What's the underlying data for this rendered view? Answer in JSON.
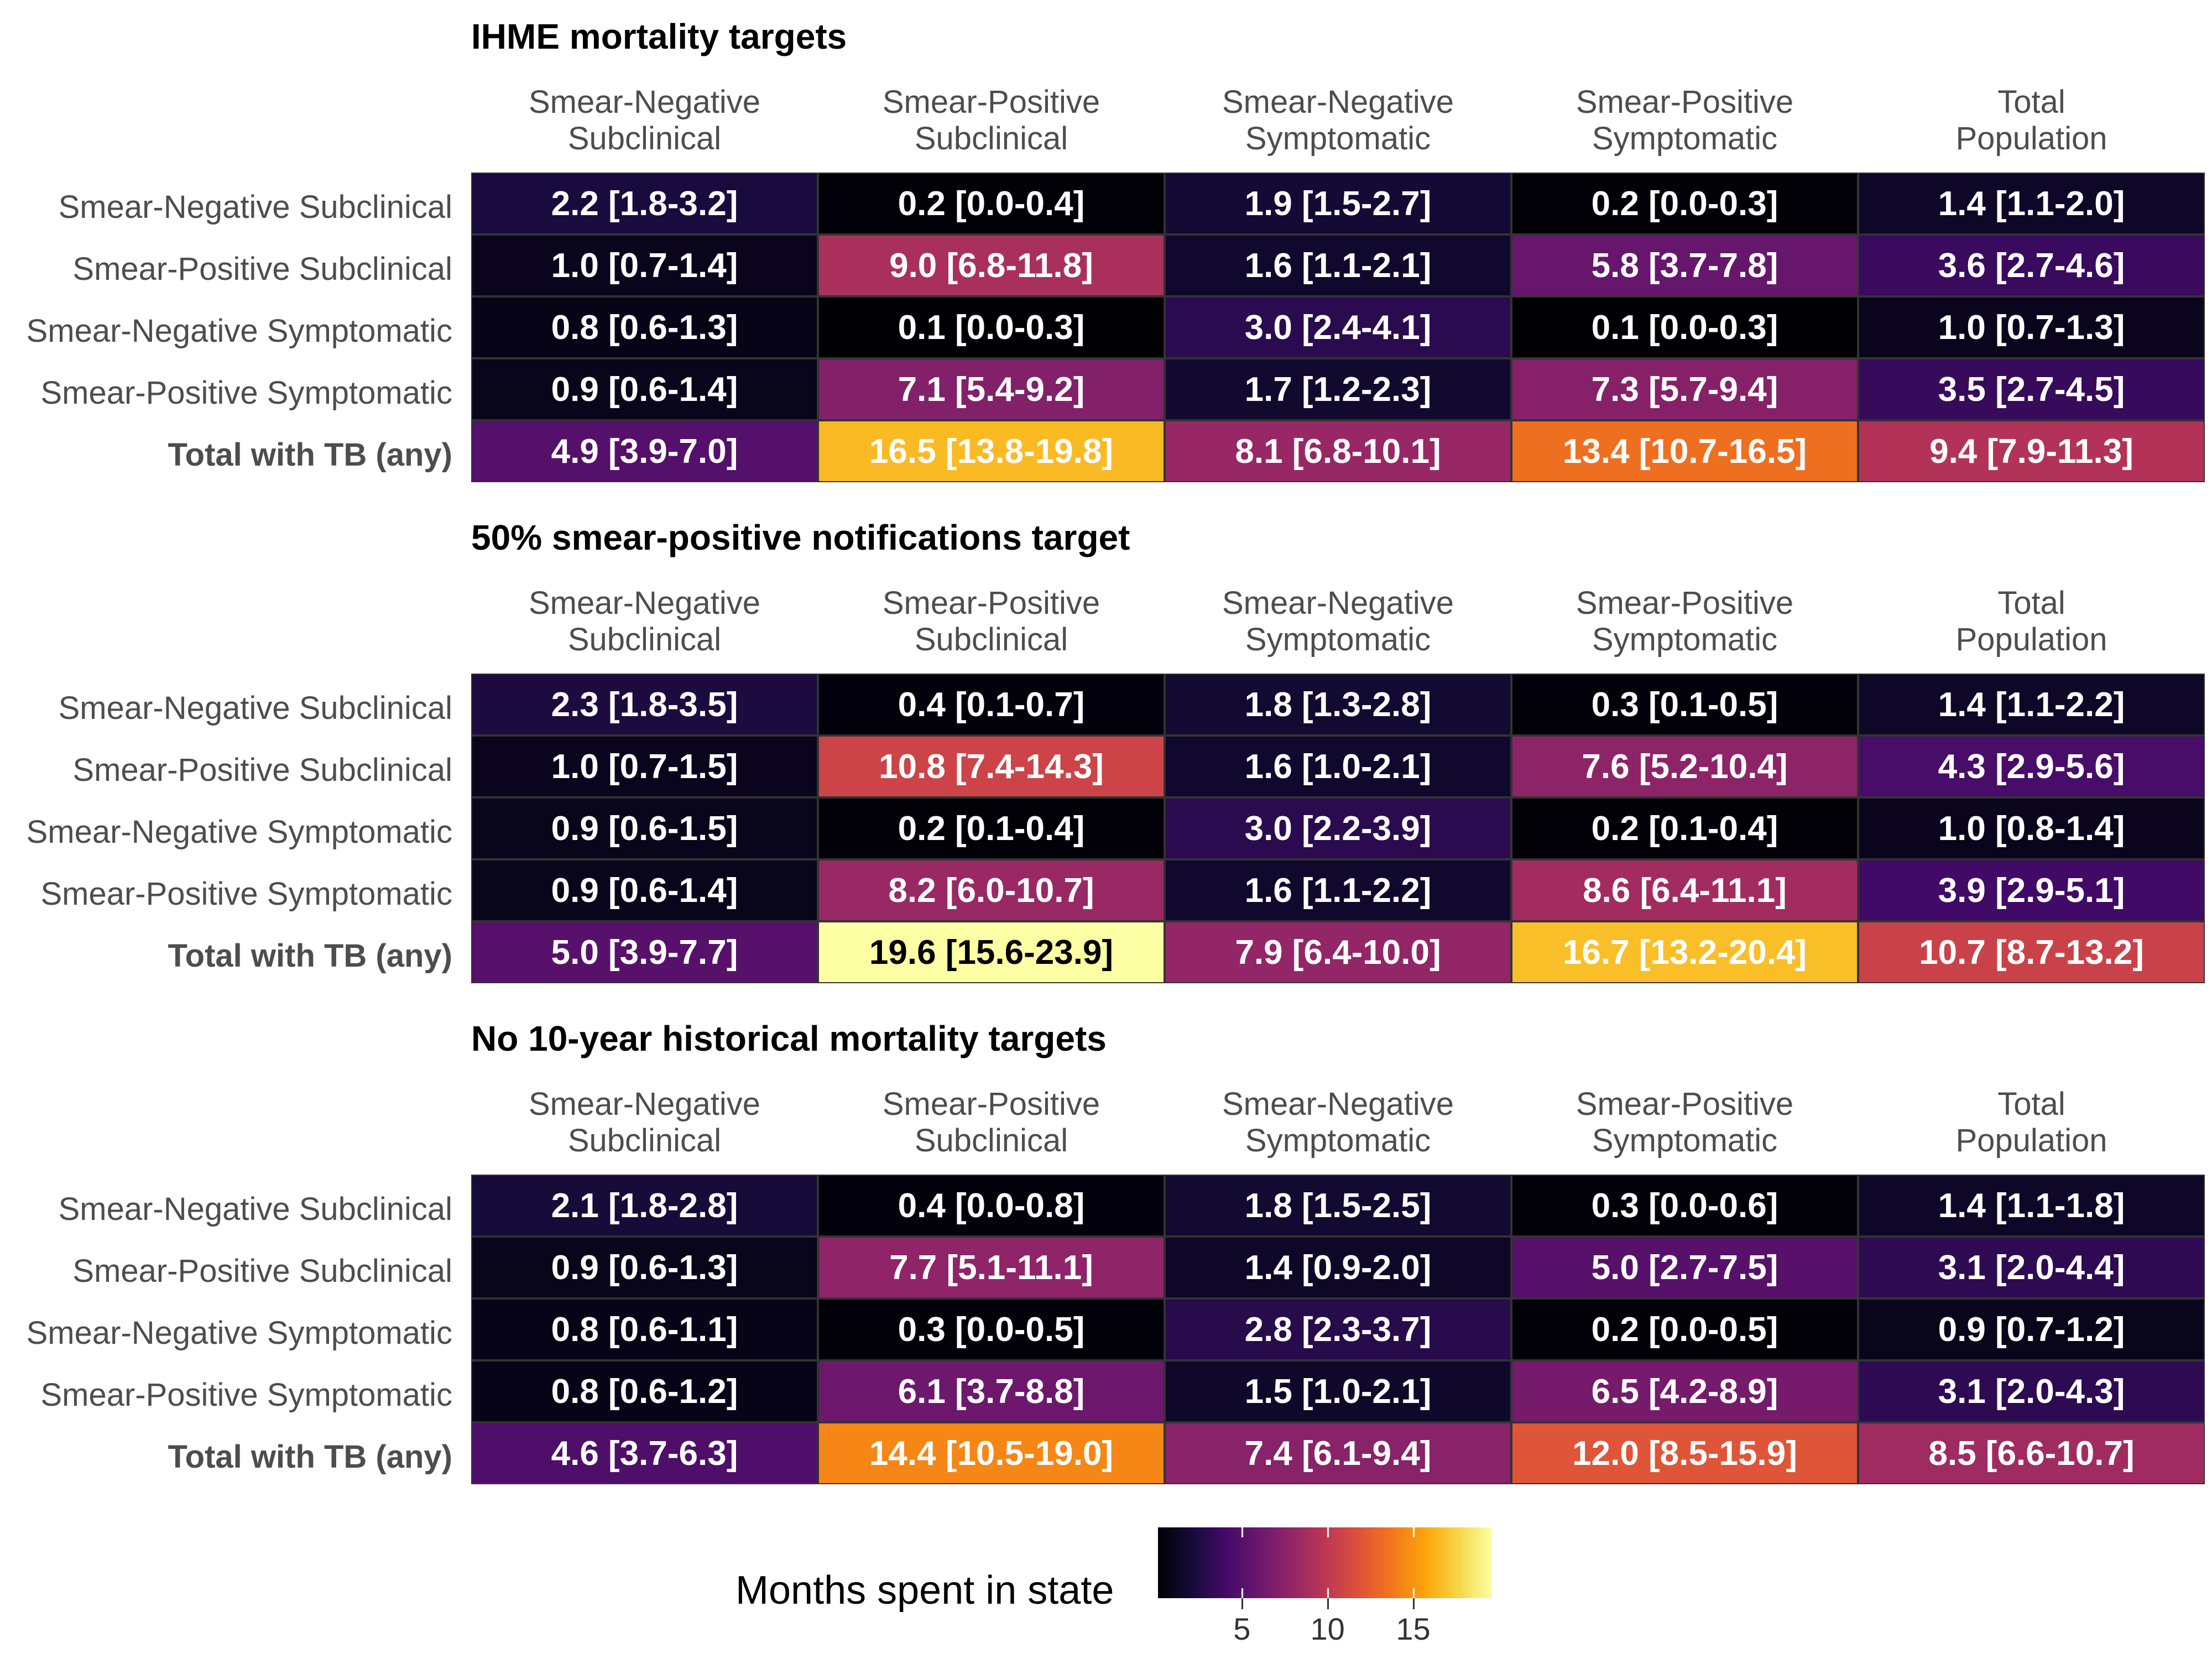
{
  "chart_data": {
    "type": "heatmap",
    "column_headers": [
      [
        "Smear-Negative",
        "Subclinical"
      ],
      [
        "Smear-Positive",
        "Subclinical"
      ],
      [
        "Smear-Negative",
        "Symptomatic"
      ],
      [
        "Smear-Positive",
        "Symptomatic"
      ],
      [
        "Total",
        "Population"
      ]
    ],
    "row_labels": [
      "Smear-Negative Subclinical",
      "Smear-Positive Subclinical",
      "Smear-Negative Symptomatic",
      "Smear-Positive Symptomatic",
      "Total with TB (any)"
    ],
    "panels": [
      {
        "title": "IHME mortality targets",
        "values": [
          [
            2.2,
            0.2,
            1.9,
            0.2,
            1.4
          ],
          [
            1.0,
            9.0,
            1.6,
            5.8,
            3.6
          ],
          [
            0.8,
            0.1,
            3.0,
            0.1,
            1.0
          ],
          [
            0.9,
            7.1,
            1.7,
            7.3,
            3.5
          ],
          [
            4.9,
            16.5,
            8.1,
            13.4,
            9.4
          ]
        ],
        "labels": [
          [
            "2.2 [1.8-3.2]",
            "0.2 [0.0-0.4]",
            "1.9 [1.5-2.7]",
            "0.2 [0.0-0.3]",
            "1.4 [1.1-2.0]"
          ],
          [
            "1.0 [0.7-1.4]",
            "9.0 [6.8-11.8]",
            "1.6 [1.1-2.1]",
            "5.8 [3.7-7.8]",
            "3.6 [2.7-4.6]"
          ],
          [
            "0.8 [0.6-1.3]",
            "0.1 [0.0-0.3]",
            "3.0 [2.4-4.1]",
            "0.1 [0.0-0.3]",
            "1.0 [0.7-1.3]"
          ],
          [
            "0.9 [0.6-1.4]",
            "7.1 [5.4-9.2]",
            "1.7 [1.2-2.3]",
            "7.3 [5.7-9.4]",
            "3.5 [2.7-4.5]"
          ],
          [
            "4.9 [3.9-7.0]",
            "16.5 [13.8-19.8]",
            "8.1 [6.8-10.1]",
            "13.4 [10.7-16.5]",
            "9.4 [7.9-11.3]"
          ]
        ]
      },
      {
        "title": "50% smear-positive notifications target",
        "values": [
          [
            2.3,
            0.4,
            1.8,
            0.3,
            1.4
          ],
          [
            1.0,
            10.8,
            1.6,
            7.6,
            4.3
          ],
          [
            0.9,
            0.2,
            3.0,
            0.2,
            1.0
          ],
          [
            0.9,
            8.2,
            1.6,
            8.6,
            3.9
          ],
          [
            5.0,
            19.6,
            7.9,
            16.7,
            10.7
          ]
        ],
        "labels": [
          [
            "2.3 [1.8-3.5]",
            "0.4 [0.1-0.7]",
            "1.8 [1.3-2.8]",
            "0.3 [0.1-0.5]",
            "1.4 [1.1-2.2]"
          ],
          [
            "1.0 [0.7-1.5]",
            "10.8 [7.4-14.3]",
            "1.6 [1.0-2.1]",
            "7.6 [5.2-10.4]",
            "4.3 [2.9-5.6]"
          ],
          [
            "0.9 [0.6-1.5]",
            "0.2 [0.1-0.4]",
            "3.0 [2.2-3.9]",
            "0.2 [0.1-0.4]",
            "1.0 [0.8-1.4]"
          ],
          [
            "0.9 [0.6-1.4]",
            "8.2 [6.0-10.7]",
            "1.6 [1.1-2.2]",
            "8.6 [6.4-11.1]",
            "3.9 [2.9-5.1]"
          ],
          [
            "5.0 [3.9-7.7]",
            "19.6 [15.6-23.9]",
            "7.9 [6.4-10.0]",
            "16.7 [13.2-20.4]",
            "10.7 [8.7-13.2]"
          ]
        ]
      },
      {
        "title": "No 10-year historical mortality targets",
        "values": [
          [
            2.1,
            0.4,
            1.8,
            0.3,
            1.4
          ],
          [
            0.9,
            7.7,
            1.4,
            5.0,
            3.1
          ],
          [
            0.8,
            0.3,
            2.8,
            0.2,
            0.9
          ],
          [
            0.8,
            6.1,
            1.5,
            6.5,
            3.1
          ],
          [
            4.6,
            14.4,
            7.4,
            12.0,
            8.5
          ]
        ],
        "labels": [
          [
            "2.1 [1.8-2.8]",
            "0.4 [0.0-0.8]",
            "1.8 [1.5-2.5]",
            "0.3 [0.0-0.6]",
            "1.4 [1.1-1.8]"
          ],
          [
            "0.9 [0.6-1.3]",
            "7.7 [5.1-11.1]",
            "1.4 [0.9-2.0]",
            "5.0 [2.7-7.5]",
            "3.1 [2.0-4.4]"
          ],
          [
            "0.8 [0.6-1.1]",
            "0.3 [0.0-0.5]",
            "2.8 [2.3-3.7]",
            "0.2 [0.0-0.5]",
            "0.9 [0.7-1.2]"
          ],
          [
            "0.8 [0.6-1.2]",
            "6.1 [3.7-8.8]",
            "1.5 [1.0-2.1]",
            "6.5 [4.2-8.9]",
            "3.1 [2.0-4.3]"
          ],
          [
            "4.6 [3.7-6.3]",
            "14.4 [10.5-19.0]",
            "7.4 [6.1-9.4]",
            "12.0 [8.5-15.9]",
            "8.5 [6.6-10.7]"
          ]
        ]
      }
    ],
    "legend": {
      "title": "Months spent in state",
      "ticks": [
        5,
        10,
        15
      ],
      "range": [
        0.1,
        19.6
      ],
      "colormap": "inferno",
      "position": "bottom"
    },
    "dark_text_threshold": 18
  }
}
